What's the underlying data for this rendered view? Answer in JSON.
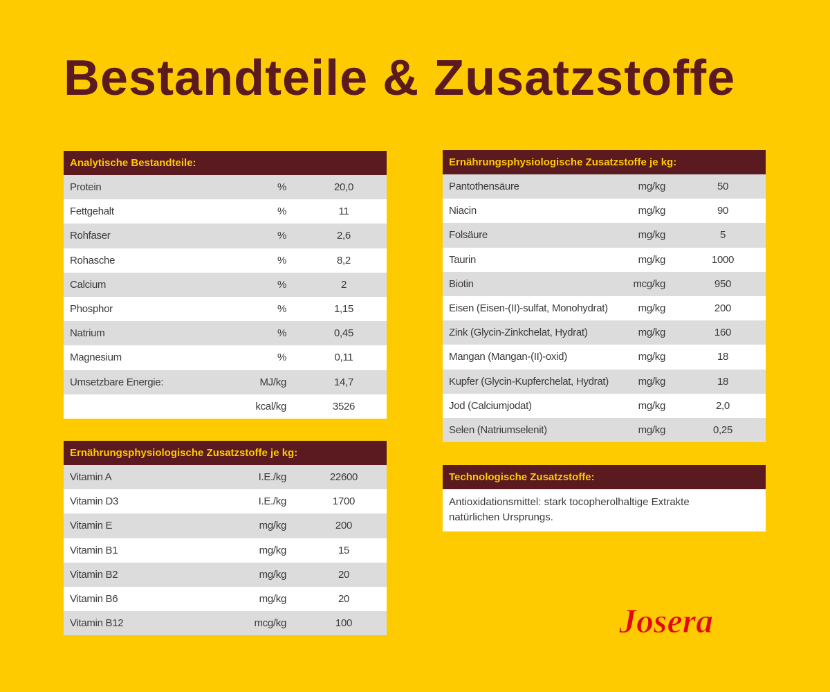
{
  "title": "Bestandteile & Zusatzstoffe",
  "tables": [
    {
      "header": "Analytische Bestandteile:",
      "rows": [
        [
          "Protein",
          "%",
          "20,0"
        ],
        [
          "Fettgehalt",
          "%",
          "11"
        ],
        [
          "Rohfaser",
          "%",
          "2,6"
        ],
        [
          "Rohasche",
          "%",
          "8,2"
        ],
        [
          "Calcium",
          "%",
          "2"
        ],
        [
          "Phosphor",
          "%",
          "1,15"
        ],
        [
          "Natrium",
          "%",
          "0,45"
        ],
        [
          "Magnesium",
          "%",
          "0,11"
        ],
        [
          "Umsetzbare Energie:",
          "MJ/kg",
          "14,7"
        ],
        [
          null,
          "kcal/kg",
          "3526"
        ]
      ]
    },
    {
      "header": "Ernährungsphysiologische Zusatzstoffe je kg:",
      "rows": [
        [
          "Vitamin A",
          "I.E./kg",
          "22600"
        ],
        [
          "Vitamin D3",
          "I.E./kg",
          "1700"
        ],
        [
          "Vitamin E",
          "mg/kg",
          "200"
        ],
        [
          "Vitamin B1",
          "mg/kg",
          "15"
        ],
        [
          "Vitamin B2",
          "mg/kg",
          "20"
        ],
        [
          "Vitamin B6",
          "mg/kg",
          "20"
        ],
        [
          "Vitamin B12",
          "mcg/kg",
          "100"
        ]
      ]
    },
    {
      "header": "Ernährungsphysiologische Zusatzstoffe je kg:",
      "rows": [
        [
          "Pantothensäure",
          "mg/kg",
          "50"
        ],
        [
          "Niacin",
          "mg/kg",
          "90"
        ],
        [
          "Folsäure",
          "mg/kg",
          "5"
        ],
        [
          "Taurin",
          "mg/kg",
          "1000"
        ],
        [
          "Biotin",
          "mcg/kg",
          "950"
        ],
        [
          "Eisen (Eisen-(II)-sulfat, Monohydrat)",
          "mg/kg",
          "200"
        ],
        [
          "Zink (Glycin-Zinkchelat, Hydrat)",
          "mg/kg",
          "160"
        ],
        [
          "Mangan (Mangan-(II)-oxid)",
          "mg/kg",
          "18"
        ],
        [
          "Kupfer (Glycin-Kupferchelat, Hydrat)",
          "mg/kg",
          "18"
        ],
        [
          "Jod (Calciumjodat)",
          "mg/kg",
          "2,0"
        ],
        [
          "Selen (Natriumselenit)",
          "mg/kg",
          "0,25"
        ]
      ]
    }
  ],
  "technology": {
    "header": "Technologische Zusatzstoffe:",
    "text": "Antioxidationsmittel: stark tocopherolhaltige Extrakte natürlichen Ursprungs."
  },
  "logo": "Josera"
}
